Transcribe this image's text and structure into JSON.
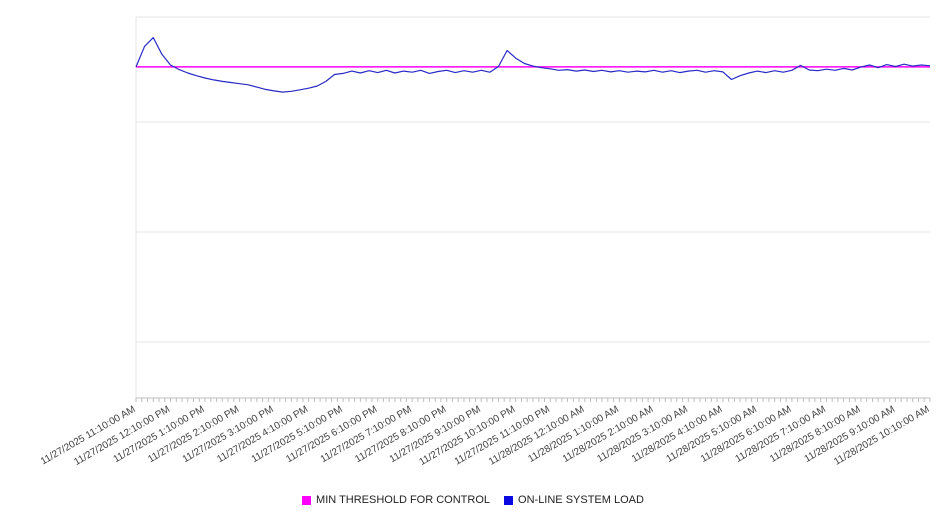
{
  "chart_data": {
    "type": "line",
    "title": "",
    "xlabel": "",
    "ylabel": "",
    "ylim": [
      0,
      100
    ],
    "grid": "horizontal",
    "legend_position": "bottom",
    "y_gridlines": [
      100,
      72.4,
      43.6,
      14.7
    ],
    "minor_ticks_per_hour": 6,
    "x_labels": [
      "11/27/2025 11:10:00 AM",
      "11/27/2025 12:10:00 PM",
      "11/27/2025 1:10:00 PM",
      "11/27/2025 2:10:00 PM",
      "11/27/2025 3:10:00 PM",
      "11/27/2025 4:10:00 PM",
      "11/27/2025 5:10:00 PM",
      "11/27/2025 6:10:00 PM",
      "11/27/2025 7:10:00 PM",
      "11/27/2025 8:10:00 PM",
      "11/27/2025 9:10:00 PM",
      "11/27/2025 10:10:00 PM",
      "11/27/2025 11:10:00 PM",
      "11/28/2025 12:10:00 AM",
      "11/28/2025 1:10:00 AM",
      "11/28/2025 2:10:00 AM",
      "11/28/2025 3:10:00 AM",
      "11/28/2025 4:10:00 AM",
      "11/28/2025 5:10:00 AM",
      "11/28/2025 6:10:00 AM",
      "11/28/2025 7:10:00 AM",
      "11/28/2025 8:10:00 AM",
      "11/28/2025 9:10:00 AM",
      "11/28/2025 10:10:00 AM"
    ],
    "series": [
      {
        "name": "MIN THRESHOLD FOR CONTROL",
        "type": "threshold",
        "color": "#ff00ff",
        "value": 86.9
      },
      {
        "name": "ON-LINE SYSTEM LOAD",
        "type": "line",
        "color": "#2929c8",
        "values": [
          86.9,
          92.3,
          94.6,
          90.2,
          87.4,
          86.2,
          85.3,
          84.6,
          84.0,
          83.5,
          83.1,
          82.8,
          82.5,
          82.2,
          81.6,
          81.0,
          80.6,
          80.3,
          80.5,
          80.9,
          81.3,
          81.9,
          83.1,
          84.9,
          85.2,
          85.8,
          85.3,
          85.9,
          85.4,
          86.0,
          85.3,
          85.8,
          85.5,
          86.0,
          85.2,
          85.7,
          86.0,
          85.4,
          85.9,
          85.5,
          86.0,
          85.5,
          87.0,
          91.2,
          89.2,
          87.8,
          87.1,
          86.7,
          86.4,
          86.0,
          86.2,
          85.8,
          86.1,
          85.7,
          86.0,
          85.6,
          85.9,
          85.5,
          85.8,
          85.6,
          86.0,
          85.5,
          85.9,
          85.4,
          85.8,
          86.0,
          85.5,
          85.9,
          85.6,
          83.6,
          84.6,
          85.3,
          85.8,
          85.4,
          85.9,
          85.5,
          86.0,
          87.3,
          86.1,
          85.9,
          86.3,
          86.0,
          86.5,
          86.1,
          86.9,
          87.4,
          86.7,
          87.5,
          87.0,
          87.6,
          87.1,
          87.4,
          87.2
        ]
      }
    ],
    "colors": {
      "grid": "#e4e4e4",
      "axis": "#bdbdbd",
      "label": "#404040",
      "background": "#ffffff"
    }
  }
}
